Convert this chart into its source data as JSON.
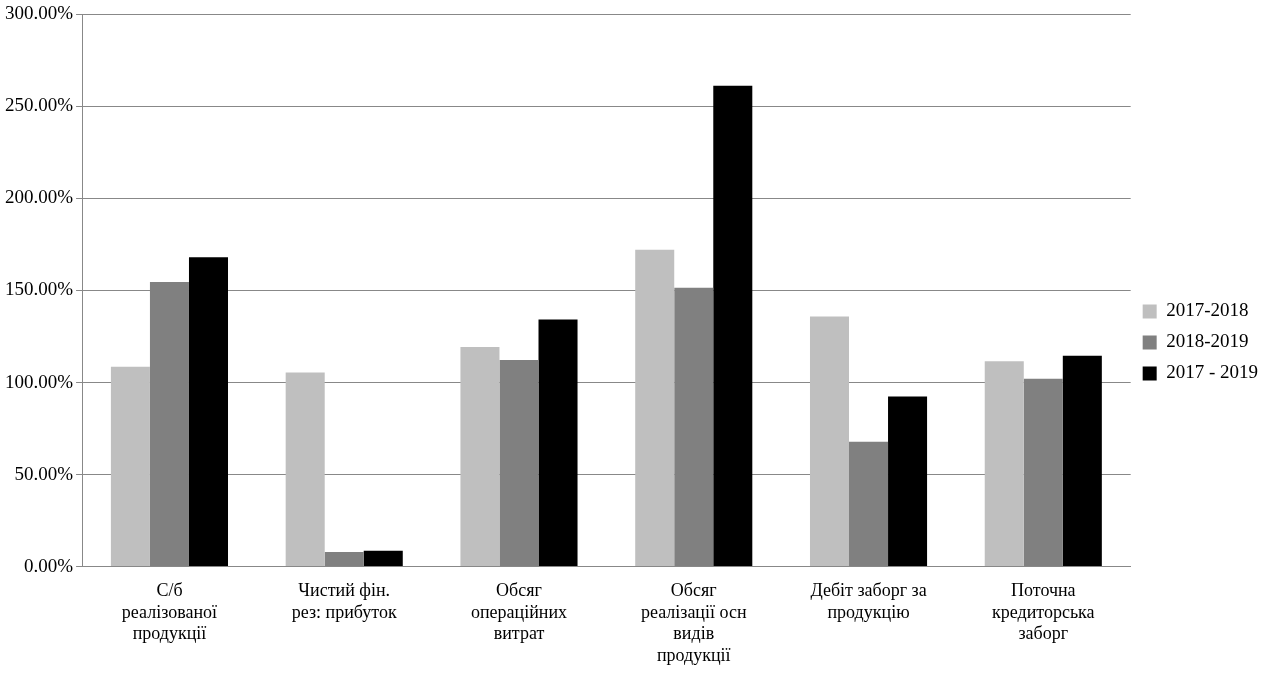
{
  "chart_data": {
    "type": "bar",
    "categories": [
      "С/б реалізованої продукції",
      "Чистий фін. рез: прибуток",
      "Обсяг операційних витрат",
      "Обсяг реалізації осн видів продукції",
      "Дебіт заборг за продукцію",
      "Поточна кредиторська заборг"
    ],
    "series": [
      {
        "name": "2017-2018",
        "color": "#bfbfbf",
        "values": [
          108.6,
          105.5,
          119.3,
          172.1,
          135.9,
          111.5
        ]
      },
      {
        "name": "2018-2019",
        "color": "#808080",
        "values": [
          154.6,
          8.0,
          112.3,
          151.5,
          67.8,
          102.1
        ]
      },
      {
        "name": "2017 - 2019",
        "color": "#000000",
        "values": [
          168.0,
          8.6,
          134.3,
          261.2,
          92.4,
          114.6
        ]
      }
    ],
    "ylim": [
      0,
      300
    ],
    "yticks": [
      {
        "value": 0,
        "label": "0.00%"
      },
      {
        "value": 50,
        "label": "50.00%"
      },
      {
        "value": 100,
        "label": "100.00%"
      },
      {
        "value": 150,
        "label": "150.00%"
      },
      {
        "value": 200,
        "label": "200.00%"
      },
      {
        "value": 250,
        "label": "250.00%"
      },
      {
        "value": 300,
        "label": "300.00%"
      }
    ],
    "grid": "y",
    "legend": "right"
  }
}
